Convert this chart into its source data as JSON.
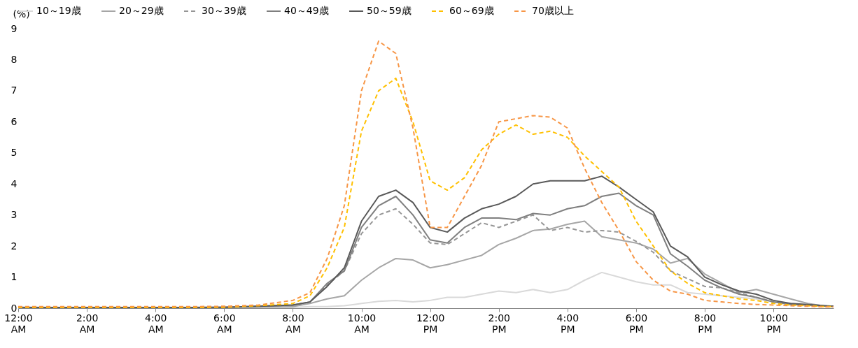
{
  "chart_data": {
    "type": "line",
    "ylabel": "(%)",
    "x": [
      0,
      1,
      2,
      3,
      4,
      5,
      6,
      7,
      8,
      8.5,
      9,
      9.5,
      10,
      10.5,
      11,
      11.5,
      12,
      12.5,
      13,
      13.5,
      14,
      14.5,
      15,
      15.5,
      16,
      16.5,
      17,
      17.5,
      18,
      18.5,
      19,
      19.5,
      20,
      20.5,
      21,
      21.5,
      22,
      22.5,
      23,
      23.5,
      23.75
    ],
    "series": [
      {
        "name": "10～19歳",
        "color": "#d9d9d9",
        "line_style": "solid",
        "values": [
          0.02,
          0.02,
          0.02,
          0.02,
          0.02,
          0.02,
          0.02,
          0.02,
          0.02,
          0.05,
          0.05,
          0.08,
          0.15,
          0.22,
          0.25,
          0.2,
          0.25,
          0.35,
          0.35,
          0.45,
          0.55,
          0.5,
          0.6,
          0.5,
          0.6,
          0.9,
          1.15,
          1.0,
          0.85,
          0.75,
          0.75,
          0.5,
          0.45,
          0.4,
          0.35,
          0.3,
          0.2,
          0.15,
          0.1,
          0.06,
          0.05
        ]
      },
      {
        "name": "20～29歳",
        "color": "#a6a6a6",
        "line_style": "solid",
        "values": [
          0.03,
          0.02,
          0.02,
          0.02,
          0.02,
          0.02,
          0.03,
          0.04,
          0.05,
          0.15,
          0.3,
          0.4,
          0.9,
          1.3,
          1.6,
          1.55,
          1.3,
          1.4,
          1.55,
          1.7,
          2.05,
          2.25,
          2.5,
          2.55,
          2.7,
          2.8,
          2.3,
          2.2,
          2.1,
          1.9,
          1.45,
          1.6,
          1.1,
          0.8,
          0.5,
          0.6,
          0.45,
          0.3,
          0.15,
          0.07,
          0.06
        ]
      },
      {
        "name": "30～39歳",
        "color": "#969696",
        "line_style": "dashed",
        "values": [
          0.02,
          0.02,
          0.02,
          0.02,
          0.02,
          0.02,
          0.03,
          0.06,
          0.1,
          0.2,
          0.75,
          1.2,
          2.4,
          3.0,
          3.2,
          2.7,
          2.1,
          2.05,
          2.4,
          2.75,
          2.6,
          2.8,
          3.0,
          2.5,
          2.6,
          2.45,
          2.5,
          2.45,
          2.15,
          1.8,
          1.2,
          0.95,
          0.7,
          0.65,
          0.5,
          0.35,
          0.2,
          0.12,
          0.1,
          0.06,
          0.05
        ]
      },
      {
        "name": "40～49歳",
        "color": "#7f7f7f",
        "line_style": "solid",
        "values": [
          0.02,
          0.02,
          0.02,
          0.02,
          0.02,
          0.02,
          0.03,
          0.06,
          0.1,
          0.2,
          0.8,
          1.2,
          2.6,
          3.3,
          3.6,
          3.0,
          2.2,
          2.1,
          2.6,
          2.9,
          2.9,
          2.85,
          3.05,
          3.0,
          3.2,
          3.3,
          3.6,
          3.7,
          3.3,
          3.0,
          1.75,
          1.35,
          0.9,
          0.65,
          0.45,
          0.35,
          0.2,
          0.12,
          0.1,
          0.07,
          0.06
        ]
      },
      {
        "name": "50～59歳",
        "color": "#595959",
        "line_style": "solid",
        "values": [
          0.02,
          0.02,
          0.02,
          0.02,
          0.02,
          0.02,
          0.03,
          0.06,
          0.1,
          0.2,
          0.7,
          1.3,
          2.8,
          3.6,
          3.8,
          3.4,
          2.6,
          2.45,
          2.9,
          3.2,
          3.35,
          3.6,
          4.0,
          4.1,
          4.1,
          4.1,
          4.25,
          3.9,
          3.5,
          3.1,
          2.0,
          1.65,
          1.0,
          0.75,
          0.55,
          0.45,
          0.25,
          0.15,
          0.12,
          0.08,
          0.06
        ]
      },
      {
        "name": "60～69歳",
        "color": "#ffc000",
        "line_style": "dashed",
        "values": [
          0.02,
          0.02,
          0.02,
          0.02,
          0.02,
          0.02,
          0.03,
          0.08,
          0.15,
          0.4,
          1.3,
          2.6,
          5.7,
          7.0,
          7.4,
          6.0,
          4.1,
          3.8,
          4.2,
          5.1,
          5.6,
          5.9,
          5.6,
          5.7,
          5.5,
          4.9,
          4.4,
          3.9,
          2.8,
          2.0,
          1.2,
          0.8,
          0.5,
          0.4,
          0.3,
          0.25,
          0.15,
          0.1,
          0.08,
          0.05,
          0.05
        ]
      },
      {
        "name": "70歳以上",
        "color": "#f79646",
        "line_style": "dashed",
        "values": [
          0.05,
          0.05,
          0.05,
          0.05,
          0.05,
          0.05,
          0.06,
          0.1,
          0.25,
          0.5,
          1.6,
          3.3,
          7.0,
          8.6,
          8.2,
          5.8,
          2.6,
          2.6,
          3.6,
          4.6,
          6.0,
          6.1,
          6.2,
          6.15,
          5.8,
          4.5,
          3.4,
          2.5,
          1.5,
          0.9,
          0.55,
          0.45,
          0.25,
          0.2,
          0.15,
          0.12,
          0.1,
          0.08,
          0.06,
          0.04,
          0.04
        ]
      }
    ],
    "xlim": [
      0,
      23.75
    ],
    "xticks": [
      {
        "value": 0,
        "label": "12:00 AM"
      },
      {
        "value": 2,
        "label": "2:00 AM"
      },
      {
        "value": 4,
        "label": "4:00 AM"
      },
      {
        "value": 6,
        "label": "6:00 AM"
      },
      {
        "value": 8,
        "label": "8:00 AM"
      },
      {
        "value": 10,
        "label": "10:00 AM"
      },
      {
        "value": 12,
        "label": "12:00 PM"
      },
      {
        "value": 14,
        "label": "2:00 PM"
      },
      {
        "value": 16,
        "label": "4:00 PM"
      },
      {
        "value": 18,
        "label": "6:00 PM"
      },
      {
        "value": 20,
        "label": "8:00 PM"
      },
      {
        "value": 22,
        "label": "10:00 PM"
      }
    ],
    "ylim": [
      0,
      9
    ],
    "yticks": [
      0,
      1,
      2,
      3,
      4,
      5,
      6,
      7,
      8,
      9
    ],
    "grid": false,
    "legend": "top"
  }
}
